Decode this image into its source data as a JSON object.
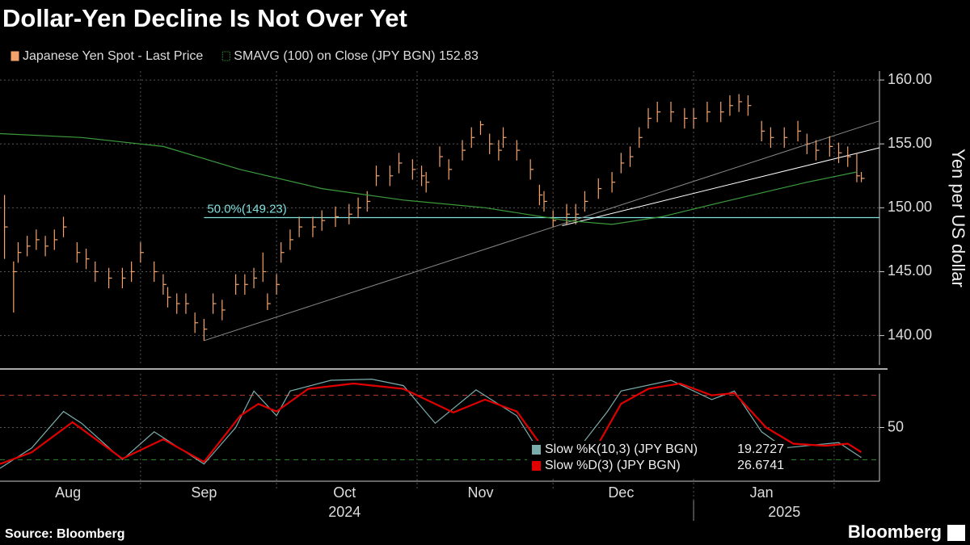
{
  "title": "Dollar-Yen Decline Is Not Over Yet",
  "source": "Source: Bloomberg",
  "brand": "Bloomberg",
  "chart_data": [
    {
      "type": "ohlc",
      "ylabel": "Yen per US dollar",
      "xlim": [
        0,
        194
      ],
      "xgrid": [
        31,
        61,
        92,
        122,
        153,
        184
      ],
      "ylim": [
        137.7,
        160.7
      ],
      "yticks": [
        {
          "value": 140,
          "label": "140.00"
        },
        {
          "value": 145,
          "label": "145.00"
        },
        {
          "value": 150,
          "label": "150.00"
        },
        {
          "value": 155,
          "label": "155.00"
        },
        {
          "value": 160,
          "label": "160.00"
        }
      ],
      "series": [
        {
          "name": "Japanese Yen Spot - Last Price",
          "color": "#f5a36b",
          "x": [
            1,
            3,
            4,
            6,
            8,
            10,
            12,
            14,
            17,
            19,
            21,
            24,
            27,
            29,
            31,
            34,
            36,
            37,
            39,
            41,
            43,
            45,
            47,
            49,
            52,
            54,
            56,
            58,
            59,
            61,
            62,
            64,
            66,
            69,
            71,
            74,
            77,
            79,
            81,
            83,
            86,
            88,
            91,
            93,
            94,
            97,
            99,
            102,
            104,
            106,
            108,
            110,
            111,
            114,
            117,
            119,
            120,
            122,
            125,
            127,
            129,
            132,
            135,
            137,
            139,
            141,
            143,
            145,
            148,
            151,
            153,
            156,
            159,
            161,
            163,
            165,
            168,
            170,
            173,
            176,
            178,
            180,
            183,
            185,
            187,
            189,
            190
          ],
          "high": [
            151,
            145.8,
            147.3,
            147.8,
            148.3,
            147.8,
            148.3,
            149.3,
            147.3,
            146.8,
            145.8,
            145.3,
            145.3,
            145.8,
            147.3,
            145.8,
            144.8,
            143.8,
            143.3,
            143.3,
            141.8,
            141.3,
            143.3,
            142.8,
            144.8,
            144.8,
            145.3,
            146.5,
            143.3,
            144.8,
            147.3,
            148.3,
            149.3,
            149.3,
            149.8,
            150.1,
            150.3,
            150.8,
            151.3,
            153.3,
            153.3,
            154.3,
            153.8,
            153.3,
            152.8,
            154.8,
            153.8,
            155.3,
            156.3,
            156.8,
            155.8,
            155.3,
            156.3,
            155.3,
            153.8,
            151.8,
            151.3,
            149.8,
            150.3,
            150.3,
            151.3,
            152.3,
            152.8,
            154.3,
            154.8,
            156.3,
            157.8,
            158.3,
            158.3,
            157.8,
            157.8,
            158.3,
            158.3,
            158.8,
            158.9,
            158.8,
            156.8,
            156.3,
            156.3,
            156.8,
            155.8,
            155.3,
            155.6,
            155.1,
            154.8,
            154.3,
            152.8
          ],
          "low": [
            146,
            141.8,
            145.7,
            146.2,
            146.7,
            146.2,
            146.7,
            147.7,
            145.7,
            145.2,
            144.2,
            143.7,
            143.7,
            144.2,
            145.7,
            144.2,
            143.2,
            142.2,
            141.7,
            141.7,
            140.2,
            139.6,
            141.7,
            141.2,
            143.2,
            143.2,
            143.7,
            144.2,
            142,
            143.2,
            145.7,
            146.7,
            147.7,
            147.7,
            148.2,
            148.5,
            148.7,
            149.2,
            149.7,
            151.7,
            151.7,
            152.7,
            152.2,
            151.7,
            151.2,
            153.2,
            152.2,
            153.7,
            154.7,
            155.7,
            154.2,
            153.7,
            154.7,
            153.7,
            152.2,
            150.2,
            149.7,
            148.5,
            148.7,
            148.7,
            149.7,
            150.7,
            151.2,
            152.7,
            153.2,
            154.7,
            156.2,
            156.7,
            156.7,
            156.2,
            156.2,
            156.7,
            156.7,
            157.2,
            157.5,
            157.2,
            155.2,
            154.7,
            154.7,
            155.2,
            154.2,
            153.7,
            154,
            153.5,
            153.2,
            152,
            152
          ],
          "close": [
            148.5,
            145,
            146.5,
            147,
            147.5,
            147,
            147.5,
            148.5,
            146.5,
            146,
            145,
            144.5,
            144.5,
            145,
            146.5,
            145,
            144,
            143,
            142.5,
            142.5,
            141,
            140.5,
            142.5,
            142,
            144,
            144,
            144.5,
            145,
            142.5,
            144,
            146.5,
            147.5,
            148.5,
            148.5,
            149,
            149.3,
            149.5,
            150,
            150.5,
            152.5,
            152.5,
            153.5,
            153,
            152.5,
            152,
            154,
            153,
            154.5,
            155.5,
            156.5,
            155,
            154.5,
            155.5,
            154.5,
            153,
            151,
            150.5,
            149,
            149.5,
            149.5,
            150.5,
            151.5,
            152,
            153.5,
            154,
            155.5,
            157,
            157.5,
            157.5,
            157,
            157,
            157.5,
            157.5,
            158,
            158.3,
            158,
            156,
            155.5,
            155.5,
            156,
            155,
            154.5,
            154.8,
            154.3,
            154,
            152.5,
            152.3
          ]
        },
        {
          "name": "SMAVG (100)  on Close (JPY BGN) 152.83",
          "color": "#3c9c3c",
          "x": [
            0,
            18,
            36,
            53,
            71,
            89,
            107,
            125,
            135,
            146,
            160,
            178,
            189
          ],
          "values": [
            155.8,
            155.5,
            154.8,
            153,
            151.5,
            150.6,
            150,
            149,
            148.7,
            149.3,
            150.5,
            152,
            152.8
          ]
        }
      ],
      "trendlines": [
        {
          "color": "#8a8a8a",
          "x": [
            45,
            194
          ],
          "values": [
            139.6,
            156.8
          ]
        },
        {
          "color": "#ffffff",
          "x": [
            124,
            194
          ],
          "values": [
            148.6,
            154.7
          ]
        }
      ],
      "levels": [
        {
          "label": "50.0%(149.23)",
          "value": 149.23,
          "x": 45,
          "color": "#7fe0e0"
        }
      ]
    },
    {
      "type": "line",
      "xlim": [
        0,
        194
      ],
      "xgrid": [
        31,
        61,
        92,
        122,
        153,
        184
      ],
      "year_split": 153,
      "xticks": [
        {
          "value": 15,
          "label": "Aug"
        },
        {
          "value": 45,
          "label": "Sep"
        },
        {
          "value": 76,
          "label": "Oct"
        },
        {
          "value": 106,
          "label": "Nov"
        },
        {
          "value": 137,
          "label": "Dec"
        },
        {
          "value": 168,
          "label": "Jan"
        }
      ],
      "years": [
        {
          "value": 76,
          "label": "2024"
        },
        {
          "value": 173,
          "label": "2025"
        }
      ],
      "ylim": [
        0,
        100
      ],
      "yticks": [
        50
      ],
      "hlines": [
        {
          "value": 80,
          "color": "#c0392b"
        },
        {
          "value": 20,
          "color": "#2e8b2e"
        }
      ],
      "series": [
        {
          "name": "Slow %K(10,3) (JPY BGN)",
          "last": 19.2727,
          "color": "#7aacac",
          "x": [
            0,
            7,
            14,
            18,
            27,
            34,
            45,
            52,
            56,
            61,
            64,
            73,
            82,
            89,
            96,
            105,
            114,
            119,
            125,
            134,
            137,
            148,
            157,
            162,
            168,
            173,
            185,
            190
          ],
          "values": [
            12,
            31,
            65,
            54,
            20,
            46,
            16,
            50,
            84,
            61,
            84,
            94,
            95,
            89,
            54,
            85,
            61,
            27,
            16,
            65,
            84,
            94,
            76,
            84,
            46,
            31,
            36,
            22
          ]
        },
        {
          "name": "Slow %D(3) (JPY BGN)",
          "last": 26.6741,
          "color": "#e00000",
          "x": [
            0,
            7,
            16,
            27,
            36,
            45,
            53,
            57,
            61,
            68,
            78,
            89,
            96,
            100,
            107,
            114,
            121,
            125,
            132,
            137,
            143,
            150,
            157,
            162,
            169,
            175,
            182,
            187,
            190
          ],
          "values": [
            16,
            27,
            55,
            21,
            39,
            18,
            61,
            72,
            65,
            86,
            91,
            86,
            72,
            64,
            76,
            65,
            24,
            21,
            35,
            72,
            86,
            91,
            80,
            82,
            50,
            35,
            33,
            35,
            27
          ]
        }
      ]
    }
  ]
}
